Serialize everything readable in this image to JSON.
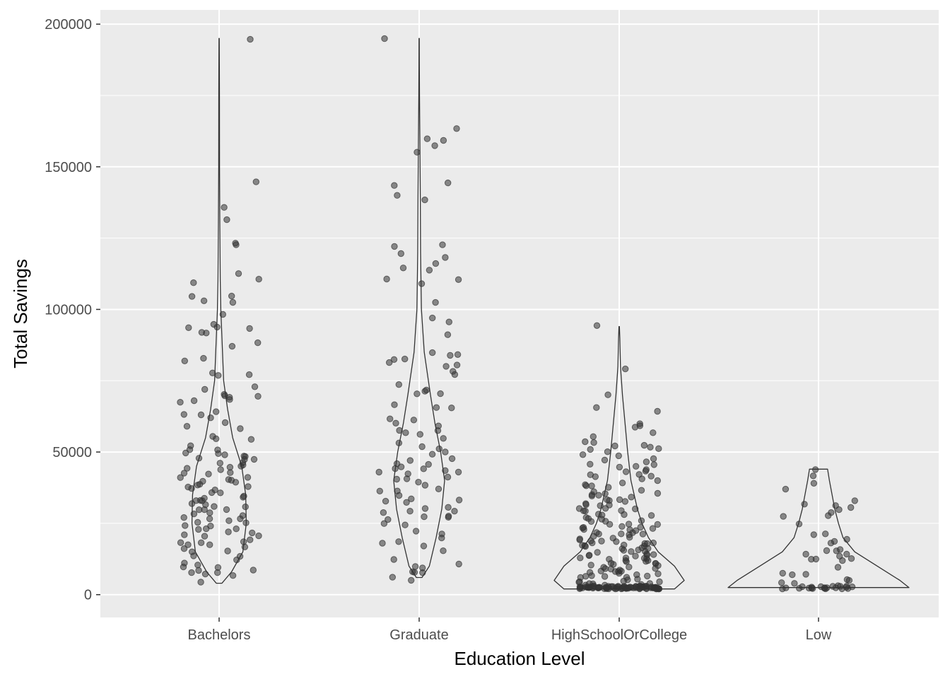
{
  "chart_data": {
    "type": "violin",
    "title": "",
    "xlabel": "Education Level",
    "ylabel": "Total Savings",
    "categories": [
      "Bachelors",
      "Graduate",
      "HighSchoolOrCollege",
      "Low"
    ],
    "ylim": [
      -8000,
      205000
    ],
    "y_ticks": [
      0,
      50000,
      100000,
      150000,
      200000
    ],
    "y_tick_labels": [
      "0",
      "50000",
      "100000",
      "150000",
      "200000"
    ],
    "grid": true,
    "legend": "none",
    "colors": {
      "panel_background": "#EBEBEB",
      "grid_major": "#FFFFFF",
      "violin_outline": "#333333",
      "point_fill": "#333333"
    },
    "violins": [
      {
        "category": "Bachelors",
        "profile": [
          [
            4000,
            0.05
          ],
          [
            8000,
            0.22
          ],
          [
            15000,
            0.42
          ],
          [
            25000,
            0.48
          ],
          [
            35000,
            0.47
          ],
          [
            45000,
            0.4
          ],
          [
            55000,
            0.24
          ],
          [
            65000,
            0.15
          ],
          [
            75000,
            0.08
          ],
          [
            90000,
            0.05
          ],
          [
            100000,
            0.03
          ],
          [
            110000,
            0.02
          ],
          [
            130000,
            0.012
          ],
          [
            150000,
            0.008
          ],
          [
            175000,
            0.006
          ],
          [
            195000,
            0.003
          ]
        ]
      },
      {
        "category": "Graduate",
        "profile": [
          [
            6000,
            0.05
          ],
          [
            10000,
            0.18
          ],
          [
            20000,
            0.3
          ],
          [
            30000,
            0.4
          ],
          [
            40000,
            0.45
          ],
          [
            50000,
            0.38
          ],
          [
            60000,
            0.28
          ],
          [
            70000,
            0.2
          ],
          [
            85000,
            0.09
          ],
          [
            100000,
            0.04
          ],
          [
            120000,
            0.025
          ],
          [
            140000,
            0.02
          ],
          [
            160000,
            0.012
          ],
          [
            175000,
            0.006
          ],
          [
            185000,
            0.004
          ],
          [
            195000,
            0.003
          ]
        ]
      },
      {
        "category": "HighSchoolOrCollege",
        "profile": [
          [
            2000,
            0.85
          ],
          [
            5000,
            1.0
          ],
          [
            10000,
            0.85
          ],
          [
            15000,
            0.6
          ],
          [
            20000,
            0.45
          ],
          [
            25000,
            0.35
          ],
          [
            30000,
            0.28
          ],
          [
            40000,
            0.18
          ],
          [
            50000,
            0.13
          ],
          [
            60000,
            0.09
          ],
          [
            70000,
            0.05
          ],
          [
            80000,
            0.02
          ],
          [
            90000,
            0.01
          ],
          [
            94000,
            0.003
          ]
        ]
      },
      {
        "category": "Low",
        "profile": [
          [
            2500,
            1.0
          ],
          [
            5000,
            0.9
          ],
          [
            10000,
            0.65
          ],
          [
            15000,
            0.4
          ],
          [
            20000,
            0.27
          ],
          [
            25000,
            0.22
          ],
          [
            30000,
            0.18
          ],
          [
            35000,
            0.15
          ],
          [
            40000,
            0.12
          ],
          [
            44000,
            0.1
          ]
        ]
      }
    ],
    "points": {
      "Bachelors": [
        195000,
        145000,
        136000,
        131000,
        123500,
        122500,
        113000,
        111000,
        109000,
        105000,
        104500,
        103000,
        102000,
        98500,
        95000,
        94000,
        93500,
        93000,
        92000,
        91500,
        88000,
        87500,
        83000,
        81500,
        78000,
        77000,
        76500,
        73000,
        72000,
        70500,
        70000,
        69500,
        69000,
        68500,
        68000,
        67000,
        64000,
        63500,
        63000,
        62000,
        60000,
        59000,
        58000,
        55500,
        55000,
        54000,
        52000,
        51000,
        50500,
        50000,
        49500,
        49000,
        49000,
        48500,
        48000,
        47500,
        47000,
        46500,
        46000,
        45500,
        45000,
        44500,
        44000,
        43500,
        43000,
        42500,
        42000,
        41500,
        41000,
        40500,
        40000,
        40000,
        39500,
        39000,
        38500,
        38000,
        37500,
        37000,
        36500,
        36000,
        35500,
        35000,
        34500,
        34000,
        33500,
        33000,
        32500,
        32000,
        31500,
        31000,
        30500,
        30000,
        30000,
        29500,
        29000,
        28500,
        28000,
        27500,
        27000,
        26500,
        26000,
        25500,
        25000,
        24500,
        24000,
        23500,
        23000,
        22500,
        22000,
        21500,
        21000,
        20500,
        20000,
        19500,
        19000,
        18500,
        18000,
        17500,
        17000,
        16500,
        16000,
        15500,
        15000,
        14000,
        13000,
        12000,
        11000,
        10500,
        10000,
        9500,
        9000,
        8500,
        8000,
        7500,
        7000,
        6500,
        4000
      ],
      "Graduate": [
        195000,
        163000,
        160000,
        159500,
        157500,
        155000,
        144000,
        143000,
        140000,
        138000,
        123000,
        122000,
        120000,
        118000,
        116000,
        115000,
        114000,
        111000,
        110500,
        109000,
        102000,
        96500,
        96000,
        91000,
        85000,
        84000,
        83500,
        83000,
        82000,
        81500,
        81000,
        80000,
        78000,
        77000,
        74000,
        71500,
        71000,
        70500,
        70000,
        67000,
        66000,
        65000,
        62000,
        61000,
        60000,
        59000,
        58000,
        57500,
        57000,
        56000,
        55000,
        53000,
        52000,
        51000,
        50000,
        49000,
        48000,
        47000,
        46000,
        45500,
        45000,
        44500,
        44000,
        43500,
        43000,
        42500,
        42000,
        41500,
        41000,
        40000,
        39000,
        38000,
        37000,
        36500,
        36000,
        35000,
        34000,
        33000,
        32500,
        32000,
        31000,
        30000,
        29500,
        29000,
        28500,
        28000,
        27500,
        27000,
        26000,
        25000,
        24000,
        22500,
        21000,
        20000,
        19000,
        18500,
        17000,
        15000,
        12000,
        11000,
        10000,
        9000,
        8500,
        8000,
        7500,
        6000,
        5500
      ],
      "HighSchoolOrCollege": [
        94500,
        79000,
        70000,
        66000,
        64000,
        60000,
        59000,
        58500,
        57000,
        55000,
        54000,
        53000,
        52500,
        52000,
        51500,
        51000,
        50500,
        50000,
        49000,
        48500,
        48000,
        47000,
        46500,
        46000,
        45500,
        45000,
        44500,
        44000,
        43500,
        43000,
        42500,
        42000,
        41500,
        41000,
        40500,
        40000,
        39500,
        39000,
        38500,
        38000,
        37500,
        37000,
        36500,
        36000,
        35500,
        35000,
        34500,
        34000,
        33500,
        33000,
        32500,
        32000,
        31500,
        31000,
        30500,
        30000,
        29500,
        29000,
        28500,
        28000,
        27500,
        27000,
        26500,
        26000,
        25500,
        25000,
        24500,
        24000,
        23500,
        23000,
        22500,
        22000,
        21500,
        21000,
        20500,
        20000,
        19500,
        19000,
        18500,
        18000,
        17500,
        17000,
        16500,
        16000,
        15500,
        15000,
        14500,
        14000,
        13500,
        13000,
        12500,
        12000,
        11500,
        11000,
        10500,
        10000,
        9500,
        9000,
        8500,
        8000,
        7500,
        7000,
        6500,
        6000,
        5500,
        5000,
        4500,
        4000,
        3500,
        3000,
        2500,
        2000,
        19000,
        18000,
        17000,
        16000,
        15000,
        14000,
        13000,
        12000,
        11000,
        10000,
        9000,
        8000,
        7000,
        6000,
        5000,
        4000,
        3000,
        2500,
        2500,
        2500,
        2500,
        2500,
        2500,
        2500,
        2500,
        2500,
        2500,
        2500,
        2500,
        2500,
        2500,
        2500,
        2500,
        2500,
        2500,
        2500,
        2500,
        2500,
        2500,
        2500,
        2500,
        2500,
        2500,
        2500,
        2500,
        2500,
        2500,
        2500,
        2500,
        2500,
        2500,
        2500,
        2500,
        2500,
        2500,
        2500,
        2500,
        2500,
        2500,
        2500,
        2500,
        2500,
        2500,
        2500,
        2500,
        2500,
        2500,
        2500,
        2500,
        2500,
        2500,
        2500,
        2500,
        2500,
        2500,
        2500,
        2500,
        2500,
        2500,
        2500,
        2500,
        2500,
        2500,
        2500,
        2500,
        2500,
        2500,
        2500,
        2500,
        2500,
        2500,
        2500,
        2500,
        2500,
        2500,
        2500,
        30000,
        28000,
        26000,
        24000,
        22000,
        20000,
        18000,
        16000,
        14000,
        12000,
        10000,
        8000,
        6000,
        4000,
        35000,
        33000,
        31000,
        29000,
        27000,
        25000,
        23000,
        21000,
        19000,
        17000,
        15000,
        13000,
        11000,
        9000,
        7000,
        5000,
        3000,
        24000,
        22000,
        20000,
        18000,
        16000,
        14000,
        12000,
        10000,
        8000,
        6000,
        4000
      ],
      "Low": [
        44000,
        42000,
        39500,
        37000,
        33000,
        32000,
        31000,
        31000,
        30000,
        28500,
        27500,
        27000,
        25000,
        21500,
        21000,
        19000,
        18500,
        18000,
        16000,
        15500,
        15000,
        14500,
        14000,
        13500,
        13000,
        12500,
        12000,
        11500,
        10000,
        8000,
        7500,
        7000,
        5500,
        5000,
        4500,
        4000,
        3000,
        2500,
        2500,
        2500,
        2500,
        2500,
        2500,
        2500,
        2500,
        2500,
        2500,
        2500,
        2500,
        2500,
        2500,
        2500,
        2500,
        2500,
        2500,
        2500,
        2500,
        2500
      ]
    }
  }
}
